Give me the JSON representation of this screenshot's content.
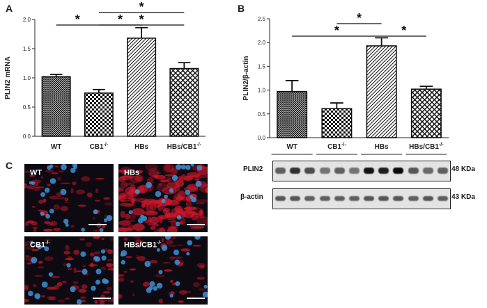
{
  "panels": {
    "a_letter": "A",
    "b_letter": "B",
    "c_letter": "C"
  },
  "chart_data": [
    {
      "type": "bar",
      "panel": "A",
      "categories": [
        "WT",
        "CB1",
        "HBs",
        "HBs/CB1"
      ],
      "category_superscripts": [
        "",
        "-/-",
        "",
        "-/-"
      ],
      "values": [
        1.02,
        0.74,
        1.68,
        1.16
      ],
      "errors": [
        0.04,
        0.06,
        0.18,
        0.1
      ],
      "patterns": [
        "dense-crosshatch",
        "checker",
        "diagonal",
        "open-crosshatch"
      ],
      "ylabel": "PLIN2 mRNA",
      "ylim": [
        0,
        2.0
      ],
      "yticks": [
        "0.0",
        "0.5",
        "1.0",
        "1.5",
        "2.0"
      ],
      "ytick_values": [
        0,
        0.5,
        1.0,
        1.5,
        2.0
      ],
      "significance": [
        {
          "from": 0,
          "to": 1,
          "level": 1,
          "mark": "*"
        },
        {
          "from": 1,
          "to": 3,
          "level": 1,
          "mark": "*"
        },
        {
          "from": 1,
          "to": 2,
          "level": 1,
          "mark": "*"
        },
        {
          "from": 1,
          "to": 3,
          "level": 2,
          "mark": "*"
        }
      ]
    },
    {
      "type": "bar",
      "panel": "B",
      "categories": [
        "WT",
        "CB1",
        "HBs",
        "HBs/CB1"
      ],
      "category_superscripts": [
        "",
        "-/-",
        "",
        "-/-"
      ],
      "values": [
        0.97,
        0.61,
        1.93,
        1.02
      ],
      "errors": [
        0.23,
        0.12,
        0.17,
        0.06
      ],
      "patterns": [
        "dense-crosshatch",
        "checker",
        "diagonal",
        "open-crosshatch"
      ],
      "ylabel": "PLIN2/β-actin",
      "ylim": [
        0,
        2.5
      ],
      "yticks": [
        "0.0",
        "0.5",
        "1.0",
        "1.5",
        "2.0",
        "2.5"
      ],
      "ytick_values": [
        0,
        0.5,
        1.0,
        1.5,
        2.0,
        2.5
      ],
      "significance": [
        {
          "from": 0,
          "to": 2,
          "level": 1,
          "mark": "*"
        },
        {
          "from": 1,
          "to": 2,
          "level": 2,
          "mark": "*"
        },
        {
          "from": 2,
          "to": 3,
          "level": 1,
          "mark": "*"
        }
      ]
    }
  ],
  "western_blot": {
    "rows": [
      {
        "name": "PLIN2",
        "size": "48 KDa",
        "lane_intensity": [
          0.55,
          0.8,
          0.65,
          0.45,
          0.55,
          0.45,
          0.95,
          0.9,
          1.0,
          0.6,
          0.5,
          0.55
        ]
      },
      {
        "name": "β-actin",
        "size": "43 KDa",
        "lane_intensity": [
          0.6,
          0.6,
          0.55,
          0.55,
          0.55,
          0.55,
          0.6,
          0.6,
          0.6,
          0.55,
          0.6,
          0.55
        ]
      }
    ]
  },
  "micrographs": [
    {
      "label": "WT",
      "superscript": ""
    },
    {
      "label": "HBs",
      "superscript": ""
    },
    {
      "label": "CB1",
      "superscript": "-/-"
    },
    {
      "label": "HBs/CB1",
      "superscript": "-/-"
    }
  ],
  "colors": {
    "bar_stroke": "#111111",
    "nuclei": "#3f8fd4",
    "lipid_stain": "#d4182a",
    "background": "#0d0a12"
  }
}
